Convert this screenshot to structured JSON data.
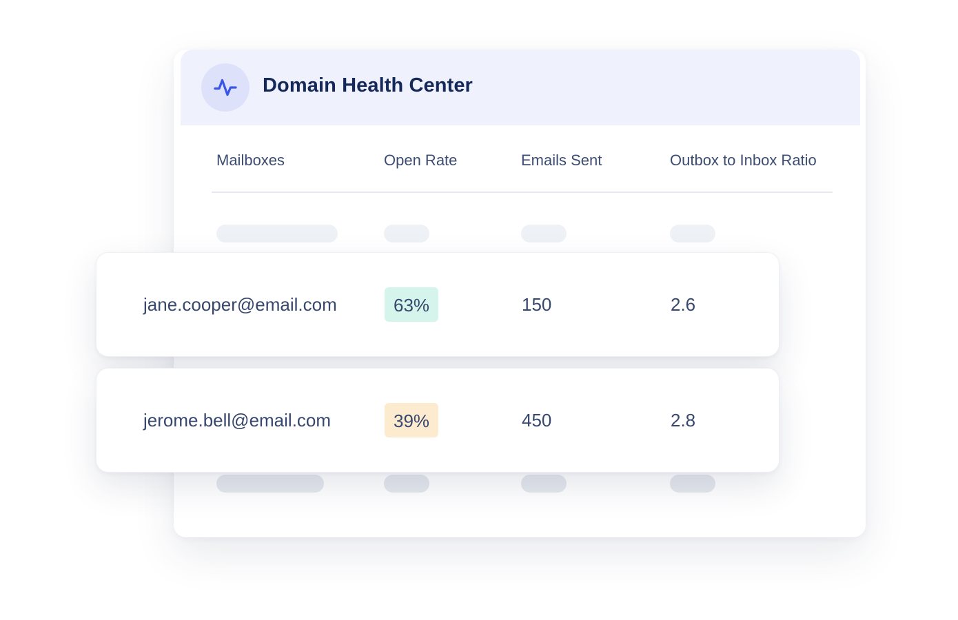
{
  "panel": {
    "title": "Domain Health Center",
    "icon": "activity-pulse-icon",
    "accent_color": "#3b55e6"
  },
  "table": {
    "columns": [
      "Mailboxes",
      "Open Rate",
      "Emails Sent",
      "Outbox to Inbox Ratio"
    ],
    "rows": [
      {
        "mailbox": "jane.cooper@email.com",
        "open_rate": "63%",
        "open_rate_status": "good",
        "open_rate_color": "#d5f5ec",
        "emails_sent": "150",
        "ratio": "2.6"
      },
      {
        "mailbox": "jerome.bell@email.com",
        "open_rate": "39%",
        "open_rate_status": "warning",
        "open_rate_color": "#fdebd0",
        "emails_sent": "450",
        "ratio": "2.8"
      }
    ]
  },
  "colors": {
    "header_background": "#eff2fd",
    "skeleton": "#eef1f5",
    "skeleton_dark": "#e4e8ee"
  }
}
